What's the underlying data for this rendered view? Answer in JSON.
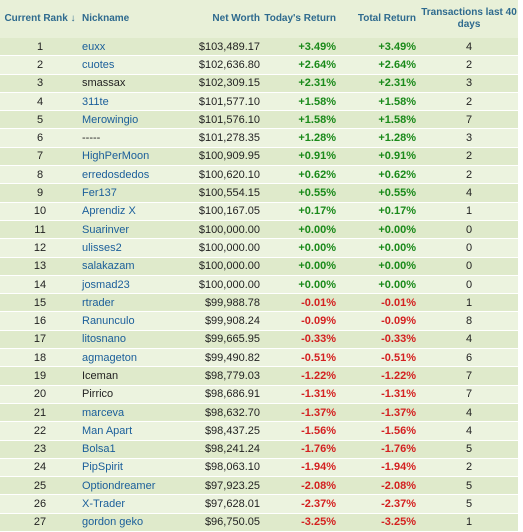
{
  "headers": {
    "rank": "Current Rank ↓",
    "nickname": "Nickname",
    "net_worth": "Net Worth",
    "today": "Today's Return",
    "total": "Total Return",
    "transactions": "Transactions last 40 days"
  },
  "rows": [
    {
      "rank": "1",
      "nick": "euxx",
      "link": true,
      "worth": "$103,489.17",
      "today": "+3.49%",
      "total": "+3.49%",
      "tx": "4"
    },
    {
      "rank": "2",
      "nick": "cuotes",
      "link": true,
      "worth": "$102,636.80",
      "today": "+2.64%",
      "total": "+2.64%",
      "tx": "2"
    },
    {
      "rank": "3",
      "nick": "smassax",
      "link": false,
      "worth": "$102,309.15",
      "today": "+2.31%",
      "total": "+2.31%",
      "tx": "3"
    },
    {
      "rank": "4",
      "nick": "311te",
      "link": true,
      "worth": "$101,577.10",
      "today": "+1.58%",
      "total": "+1.58%",
      "tx": "2"
    },
    {
      "rank": "5",
      "nick": "Merowingio",
      "link": true,
      "worth": "$101,576.10",
      "today": "+1.58%",
      "total": "+1.58%",
      "tx": "7"
    },
    {
      "rank": "6",
      "nick": "-----",
      "link": false,
      "worth": "$101,278.35",
      "today": "+1.28%",
      "total": "+1.28%",
      "tx": "3"
    },
    {
      "rank": "7",
      "nick": "HighPerMoon",
      "link": true,
      "worth": "$100,909.95",
      "today": "+0.91%",
      "total": "+0.91%",
      "tx": "2"
    },
    {
      "rank": "8",
      "nick": "erredosdedos",
      "link": true,
      "worth": "$100,620.10",
      "today": "+0.62%",
      "total": "+0.62%",
      "tx": "2"
    },
    {
      "rank": "9",
      "nick": "Fer137",
      "link": true,
      "worth": "$100,554.15",
      "today": "+0.55%",
      "total": "+0.55%",
      "tx": "4"
    },
    {
      "rank": "10",
      "nick": "Aprendiz X",
      "link": true,
      "worth": "$100,167.05",
      "today": "+0.17%",
      "total": "+0.17%",
      "tx": "1"
    },
    {
      "rank": "11",
      "nick": "Suarinver",
      "link": true,
      "worth": "$100,000.00",
      "today": "+0.00%",
      "total": "+0.00%",
      "tx": "0"
    },
    {
      "rank": "12",
      "nick": "ulisses2",
      "link": true,
      "worth": "$100,000.00",
      "today": "+0.00%",
      "total": "+0.00%",
      "tx": "0"
    },
    {
      "rank": "13",
      "nick": "salakazam",
      "link": true,
      "worth": "$100,000.00",
      "today": "+0.00%",
      "total": "+0.00%",
      "tx": "0"
    },
    {
      "rank": "14",
      "nick": "josmad23",
      "link": true,
      "worth": "$100,000.00",
      "today": "+0.00%",
      "total": "+0.00%",
      "tx": "0"
    },
    {
      "rank": "15",
      "nick": "rtrader",
      "link": true,
      "worth": "$99,988.78",
      "today": "-0.01%",
      "total": "-0.01%",
      "tx": "1"
    },
    {
      "rank": "16",
      "nick": "Ranunculo",
      "link": true,
      "worth": "$99,908.24",
      "today": "-0.09%",
      "total": "-0.09%",
      "tx": "8"
    },
    {
      "rank": "17",
      "nick": "litosnano",
      "link": true,
      "worth": "$99,665.95",
      "today": "-0.33%",
      "total": "-0.33%",
      "tx": "4"
    },
    {
      "rank": "18",
      "nick": "agmageton",
      "link": true,
      "worth": "$99,490.82",
      "today": "-0.51%",
      "total": "-0.51%",
      "tx": "6"
    },
    {
      "rank": "19",
      "nick": "Iceman",
      "link": false,
      "worth": "$98,779.03",
      "today": "-1.22%",
      "total": "-1.22%",
      "tx": "7"
    },
    {
      "rank": "20",
      "nick": "Pirrico",
      "link": false,
      "worth": "$98,686.91",
      "today": "-1.31%",
      "total": "-1.31%",
      "tx": "7"
    },
    {
      "rank": "21",
      "nick": "marceva",
      "link": true,
      "worth": "$98,632.70",
      "today": "-1.37%",
      "total": "-1.37%",
      "tx": "4"
    },
    {
      "rank": "22",
      "nick": "Man Apart",
      "link": true,
      "worth": "$98,437.25",
      "today": "-1.56%",
      "total": "-1.56%",
      "tx": "4"
    },
    {
      "rank": "23",
      "nick": "Bolsa1",
      "link": true,
      "worth": "$98,241.24",
      "today": "-1.76%",
      "total": "-1.76%",
      "tx": "5"
    },
    {
      "rank": "24",
      "nick": "PipSpirit",
      "link": true,
      "worth": "$98,063.10",
      "today": "-1.94%",
      "total": "-1.94%",
      "tx": "2"
    },
    {
      "rank": "25",
      "nick": "Optiondreamer",
      "link": true,
      "worth": "$97,923.25",
      "today": "-2.08%",
      "total": "-2.08%",
      "tx": "5"
    },
    {
      "rank": "26",
      "nick": "X-Trader",
      "link": true,
      "worth": "$97,628.01",
      "today": "-2.37%",
      "total": "-2.37%",
      "tx": "5"
    },
    {
      "rank": "27",
      "nick": "gordon geko",
      "link": true,
      "worth": "$96,750.05",
      "today": "-3.25%",
      "total": "-3.25%",
      "tx": "1"
    }
  ],
  "colors": {
    "header_text": "#2e6a8e",
    "link": "#1a5e9a",
    "positive": "#1a8a1a",
    "negative": "#d42020",
    "row_odd": "#dfeacb",
    "row_even": "#ecf3df"
  }
}
